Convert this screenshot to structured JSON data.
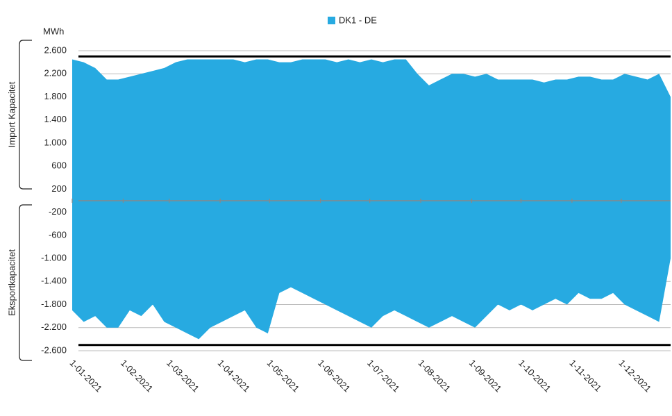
{
  "chart_data": {
    "type": "area_range",
    "legend": "top",
    "y_label_unit": "MWh",
    "y_label_upper": "Import Kapacitet",
    "y_label_lower": "Eksportkapacitet",
    "x": [
      "1-01-2021",
      "8-01-2021",
      "15-01-2021",
      "22-01-2021",
      "29-01-2021",
      "5-02-2021",
      "12-02-2021",
      "19-02-2021",
      "26-02-2021",
      "5-03-2021",
      "12-03-2021",
      "19-03-2021",
      "26-03-2021",
      "2-04-2021",
      "9-04-2021",
      "16-04-2021",
      "23-04-2021",
      "30-04-2021",
      "7-05-2021",
      "14-05-2021",
      "21-05-2021",
      "28-05-2021",
      "4-06-2021",
      "11-06-2021",
      "18-06-2021",
      "25-06-2021",
      "2-07-2021",
      "9-07-2021",
      "16-07-2021",
      "23-07-2021",
      "30-07-2021",
      "6-08-2021",
      "13-08-2021",
      "20-08-2021",
      "27-08-2021",
      "3-09-2021",
      "10-09-2021",
      "17-09-2021",
      "24-09-2021",
      "1-10-2021",
      "8-10-2021",
      "15-10-2021",
      "22-10-2021",
      "29-10-2021",
      "5-11-2021",
      "12-11-2021",
      "19-11-2021",
      "26-11-2021",
      "3-12-2021",
      "10-12-2021",
      "17-12-2021",
      "24-12-2021",
      "31-12-2021"
    ],
    "series": [
      {
        "name": "DK1 - DE",
        "color": "#27aae1",
        "values": [
          [
            -1900,
            2450
          ],
          [
            -2100,
            2400
          ],
          [
            -2000,
            2300
          ],
          [
            -2200,
            2100
          ],
          [
            -2200,
            2100
          ],
          [
            -1900,
            2150
          ],
          [
            -2000,
            2200
          ],
          [
            -1800,
            2250
          ],
          [
            -2100,
            2300
          ],
          [
            -2200,
            2400
          ],
          [
            -2300,
            2450
          ],
          [
            -2400,
            2450
          ],
          [
            -2200,
            2450
          ],
          [
            -2100,
            2450
          ],
          [
            -2000,
            2450
          ],
          [
            -1900,
            2400
          ],
          [
            -2200,
            2450
          ],
          [
            -2300,
            2450
          ],
          [
            -1600,
            2400
          ],
          [
            -1500,
            2400
          ],
          [
            -1600,
            2450
          ],
          [
            -1700,
            2450
          ],
          [
            -1800,
            2450
          ],
          [
            -1900,
            2400
          ],
          [
            -2000,
            2450
          ],
          [
            -2100,
            2400
          ],
          [
            -2200,
            2450
          ],
          [
            -2000,
            2400
          ],
          [
            -1900,
            2450
          ],
          [
            -2000,
            2450
          ],
          [
            -2100,
            2200
          ],
          [
            -2200,
            2000
          ],
          [
            -2100,
            2100
          ],
          [
            -2000,
            2200
          ],
          [
            -2100,
            2200
          ],
          [
            -2200,
            2150
          ],
          [
            -2000,
            2200
          ],
          [
            -1800,
            2100
          ],
          [
            -1900,
            2100
          ],
          [
            -1800,
            2100
          ],
          [
            -1900,
            2100
          ],
          [
            -1800,
            2050
          ],
          [
            -1700,
            2100
          ],
          [
            -1800,
            2100
          ],
          [
            -1600,
            2150
          ],
          [
            -1700,
            2150
          ],
          [
            -1700,
            2100
          ],
          [
            -1600,
            2100
          ],
          [
            -1800,
            2200
          ],
          [
            -1900,
            2150
          ],
          [
            -2000,
            2100
          ],
          [
            -2100,
            2200
          ],
          [
            -1000,
            1800
          ]
        ]
      }
    ],
    "xlim": [
      "1-01-2021",
      "31-12-2021"
    ],
    "xticks": [
      "1-01-2021",
      "1-02-2021",
      "1-03-2021",
      "1-04-2021",
      "1-05-2021",
      "1-06-2021",
      "1-07-2021",
      "1-08-2021",
      "1-09-2021",
      "1-10-2021",
      "1-11-2021",
      "1-12-2021"
    ],
    "ylim": [
      -2600,
      2600
    ],
    "yticks": [
      {
        "value": 2600,
        "label": "2.600"
      },
      {
        "value": 2200,
        "label": "2.200"
      },
      {
        "value": 1800,
        "label": "1.800"
      },
      {
        "value": 1400,
        "label": "1.400"
      },
      {
        "value": 1000,
        "label": "1.000"
      },
      600,
      200,
      -200,
      -600,
      {
        "value": -1000,
        "label": "-1.000"
      },
      {
        "value": -1400,
        "label": "-1.400"
      },
      {
        "value": -1800,
        "label": "-1.800"
      },
      {
        "value": -2200,
        "label": "-2.200"
      },
      {
        "value": -2600,
        "label": "-2.600"
      }
    ],
    "hlines": [
      2500,
      -2500
    ],
    "grid": true
  }
}
